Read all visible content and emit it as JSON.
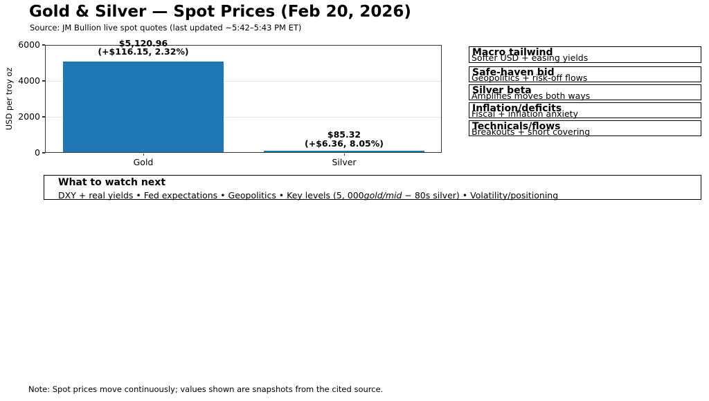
{
  "header": {
    "title": "Gold & Silver — Spot Prices (Feb 20, 2026)",
    "subtitle": "Source: JM Bullion live spot quotes (last updated ~5:42–5:43 PM ET)"
  },
  "chart_data": {
    "type": "bar",
    "title": "Gold & Silver — Spot Prices (Feb 20, 2026)",
    "categories": [
      "Gold",
      "Silver"
    ],
    "values": [
      5120.96,
      85.32
    ],
    "value_labels": [
      "$5,120.96",
      "$85.32"
    ],
    "change_labels": [
      "(+$116.15, 2.32%)",
      "(+$6.36, 8.05%)"
    ],
    "xlabel": "",
    "ylabel": "USD per troy oz",
    "ylim": [
      0,
      6000
    ],
    "y_ticks": [
      "0",
      "2000",
      "4000",
      "6000"
    ],
    "grid": "horizontal light gray",
    "legend": "none",
    "bar_color": "#1f77b4"
  },
  "factors": [
    {
      "title": "Macro tailwind",
      "detail": "Softer USD + easing yields"
    },
    {
      "title": "Safe-haven bid",
      "detail": "Geopolitics + risk-off flows"
    },
    {
      "title": "Silver beta",
      "detail": "Amplifies moves both ways"
    },
    {
      "title": "Inflation/deficits",
      "detail": "Fiscal + inflation anxiety"
    },
    {
      "title": "Technicals/flows",
      "detail": "Breakouts + short covering"
    }
  ],
  "watch_box": {
    "title": "What to watch next",
    "text_prefix": "DXY + real yields • Fed expectations • Geopolitics • Key levels (5, 000",
    "text_italic": "gold/mid",
    "text_suffix": " − 80s silver) • Volatility/positioning"
  },
  "footnote": "Note: Spot prices move continuously; values shown are snapshots from the cited source."
}
